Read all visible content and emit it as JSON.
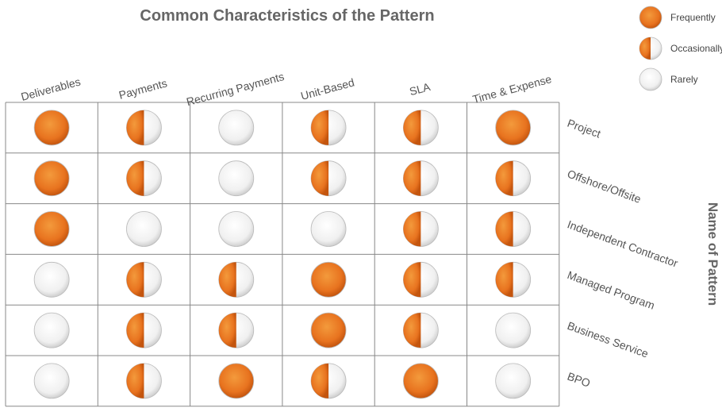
{
  "title": "Common Characteristics of the Pattern",
  "legend": [
    {
      "label": "Frequently",
      "level": "full"
    },
    {
      "label": "Occasionally",
      "level": "half"
    },
    {
      "label": "Rarely",
      "level": "empty"
    }
  ],
  "columns": [
    "Deliverables",
    "Payments",
    "Recurring Payments",
    "Unit-Based",
    "SLA",
    "Time & Expense"
  ],
  "row_axis_label": "Name of Pattern",
  "rows": [
    {
      "name": "Project",
      "cells": [
        "full",
        "half",
        "empty",
        "half",
        "half",
        "full"
      ]
    },
    {
      "name": "Offshore/Offsite",
      "cells": [
        "full",
        "half",
        "empty",
        "half",
        "half",
        "half"
      ]
    },
    {
      "name": "Independent Contractor",
      "cells": [
        "full",
        "empty",
        "empty",
        "empty",
        "half",
        "half"
      ]
    },
    {
      "name": "Managed Program",
      "cells": [
        "empty",
        "half",
        "half",
        "full",
        "half",
        "half"
      ]
    },
    {
      "name": "Business Service",
      "cells": [
        "empty",
        "half",
        "half",
        "full",
        "half",
        "empty"
      ]
    },
    {
      "name": "BPO",
      "cells": [
        "empty",
        "half",
        "full",
        "half",
        "full",
        "empty"
      ]
    }
  ]
}
